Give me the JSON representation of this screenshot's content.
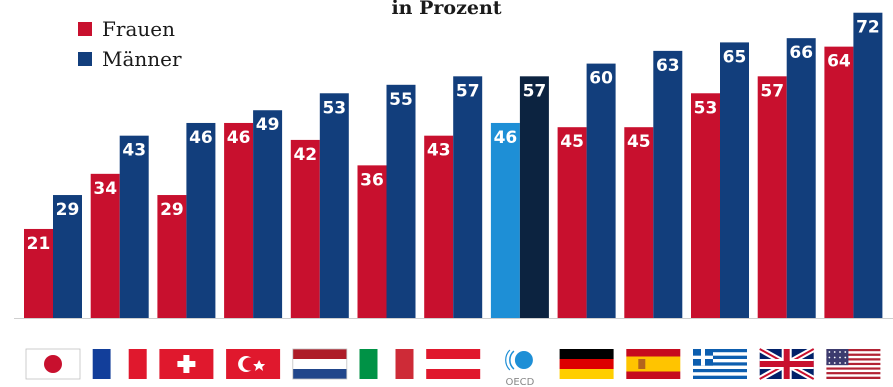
{
  "chart_data": {
    "type": "bar",
    "subtitle": "in Prozent",
    "categories": [
      "Japan",
      "Frankreich",
      "Schweiz",
      "Türkei",
      "Niederlande",
      "Italien",
      "Österreich",
      "OECD",
      "Deutschland",
      "Spanien",
      "Griechenland",
      "Großbritannien",
      "USA"
    ],
    "category_icons": [
      "japan-flag-icon",
      "france-flag-icon",
      "switzerland-flag-icon",
      "turkey-flag-icon",
      "netherlands-flag-icon",
      "italy-flag-icon",
      "austria-flag-icon",
      "oecd-logo-icon",
      "germany-flag-icon",
      "spain-flag-icon",
      "greece-flag-icon",
      "uk-flag-icon",
      "usa-flag-icon"
    ],
    "oecd_logo_text": "OECD",
    "series": [
      {
        "name": "Frauen",
        "color": "#c8102e",
        "values": [
          21,
          34,
          29,
          46,
          42,
          36,
          43,
          46,
          45,
          45,
          53,
          57,
          64
        ]
      },
      {
        "name": "Männer",
        "color": "#123e7c",
        "values": [
          29,
          43,
          46,
          49,
          53,
          55,
          57,
          57,
          60,
          63,
          65,
          66,
          72
        ]
      }
    ],
    "highlight": {
      "category": "OECD",
      "frauen_color": "#1e8fd6",
      "maenner_color": "#0c2340"
    },
    "ylim": [
      0,
      75
    ],
    "legend": "top-left",
    "grid": false
  }
}
